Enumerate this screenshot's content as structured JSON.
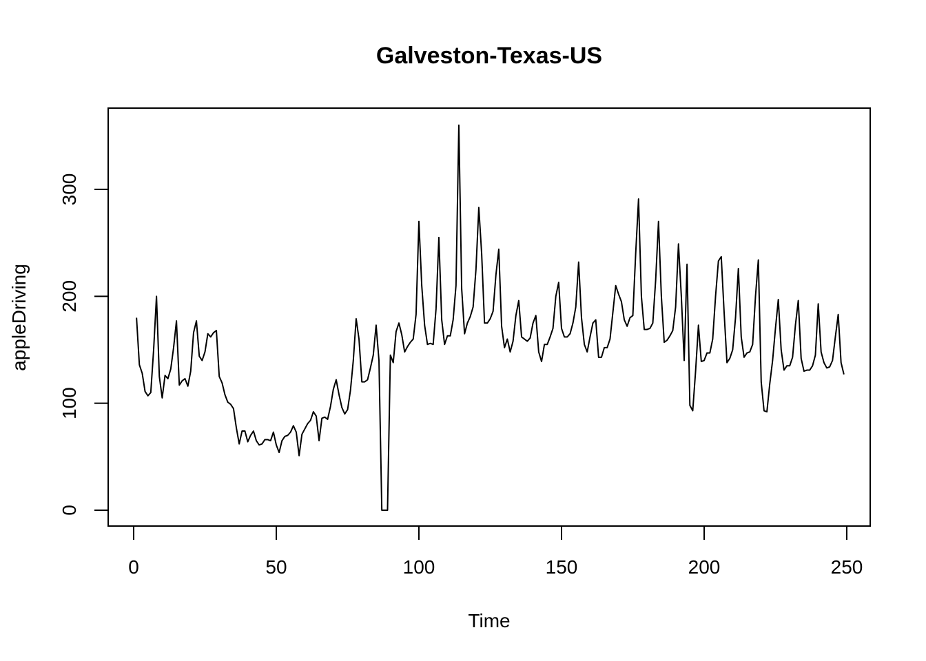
{
  "chart_data": {
    "type": "line",
    "title": "Galveston-Texas-US",
    "xlabel": "Time",
    "ylabel": "appleDriving",
    "xlim": [
      1,
      248
    ],
    "ylim": [
      0,
      360
    ],
    "x_ticks": [
      0,
      50,
      100,
      150,
      200,
      250
    ],
    "y_ticks": [
      0,
      100,
      200,
      300
    ],
    "grid": false,
    "series": [
      {
        "values": [
          180,
          136,
          128,
          111,
          107,
          110,
          150,
          200,
          125,
          105,
          126,
          123,
          132,
          152,
          177,
          117,
          121,
          123,
          116,
          130,
          166,
          177,
          144,
          140,
          148,
          165,
          162,
          166,
          168,
          125,
          119,
          108,
          101,
          99,
          95,
          77,
          62,
          74,
          74,
          64,
          70,
          74,
          65,
          61,
          62,
          66,
          66,
          65,
          73,
          61,
          54,
          65,
          69,
          70,
          73,
          79,
          73,
          51,
          71,
          76,
          81,
          84,
          92,
          88,
          65,
          86,
          87,
          85,
          97,
          113,
          122,
          108,
          96,
          90,
          94,
          112,
          140,
          179,
          160,
          120,
          120,
          122,
          133,
          145,
          173,
          140,
          0,
          0,
          0,
          145,
          138,
          167,
          175,
          164,
          148,
          153,
          157,
          160,
          183,
          270,
          210,
          173,
          155,
          156,
          155,
          188,
          255,
          178,
          155,
          163,
          163,
          178,
          210,
          360,
          207,
          165,
          175,
          181,
          190,
          225,
          283,
          240,
          175,
          175,
          179,
          186,
          220,
          244,
          172,
          152,
          160,
          148,
          158,
          182,
          196,
          162,
          160,
          158,
          161,
          175,
          182,
          148,
          139,
          155,
          155,
          162,
          170,
          200,
          213,
          170,
          162,
          162,
          165,
          175,
          190,
          232,
          180,
          155,
          148,
          162,
          175,
          178,
          143,
          143,
          152,
          152,
          160,
          185,
          210,
          202,
          195,
          178,
          172,
          180,
          182,
          240,
          291,
          200,
          169,
          169,
          170,
          175,
          215,
          270,
          200,
          157,
          159,
          163,
          168,
          190,
          249,
          200,
          140,
          230,
          98,
          93,
          130,
          173,
          139,
          140,
          147,
          147,
          160,
          200,
          233,
          237,
          185,
          138,
          142,
          150,
          180,
          226,
          162,
          143,
          147,
          148,
          155,
          200,
          234,
          120,
          93,
          92,
          118,
          140,
          170,
          197,
          150,
          131,
          135,
          135,
          143,
          173,
          196,
          142,
          130,
          131,
          131,
          135,
          145,
          193,
          148,
          138,
          133,
          134,
          140,
          162,
          183,
          138,
          127
        ]
      }
    ]
  }
}
